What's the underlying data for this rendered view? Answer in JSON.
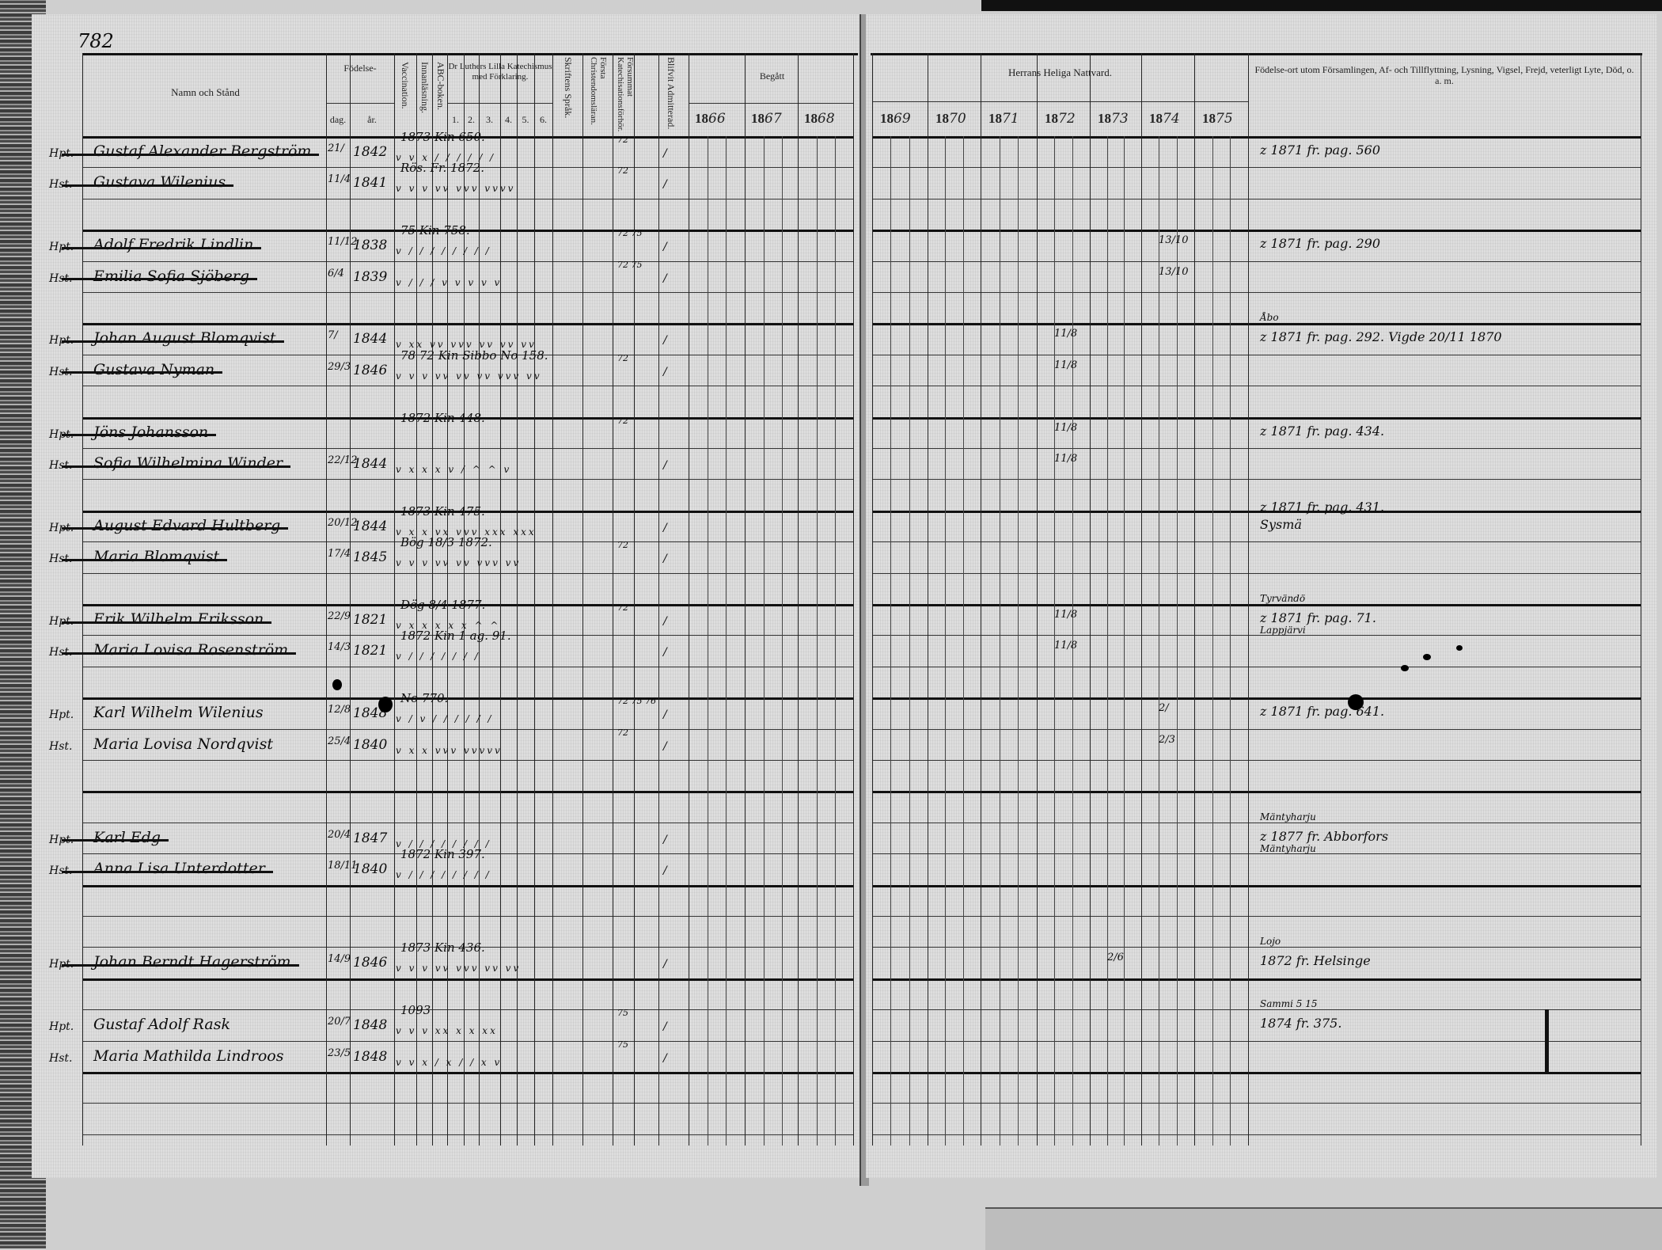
{
  "page_number": "782",
  "left_header": {
    "name_col": "Namn och Stånd",
    "birth": "Födelse-",
    "birth_day": "dag.",
    "birth_year": "år.",
    "vaccination": "Vaccination.",
    "reading": "Innanläsning.",
    "abc": "ABC-boken.",
    "catechism": "Dr Luthers Lilla Katechismus med Förklaring.",
    "catechism_parts": [
      "1.",
      "2.",
      "3.",
      "4.",
      "5.",
      "6."
    ],
    "scripture": "Skriftens Språk.",
    "first_doctrine": "Första Christendomsläran.",
    "missed_catechisation": "Försummat Katechisationsförhör.",
    "admitted": "Blifvit Admitterad.",
    "begatt": "Begått",
    "years": [
      {
        "prefix": "18",
        "hand": "66"
      },
      {
        "prefix": "18",
        "hand": "67"
      },
      {
        "prefix": "18",
        "hand": "68"
      }
    ]
  },
  "right_header": {
    "communion": "Herrans Heliga Nattvard.",
    "years": [
      {
        "prefix": "18",
        "hand": "69"
      },
      {
        "prefix": "18",
        "hand": "70"
      },
      {
        "prefix": "18",
        "hand": "71"
      },
      {
        "prefix": "18",
        "hand": "72"
      },
      {
        "prefix": "18",
        "hand": "73"
      },
      {
        "prefix": "18",
        "hand": "74"
      },
      {
        "prefix": "18",
        "hand": "75"
      }
    ],
    "notes_col": "Födelse-ort utom Församlingen, Af- och Tillflyttning, Lysning, Vigsel, Frejd, veterligt Lyte, Död, o. a. m."
  },
  "entries": [
    {
      "prefix": "Hpt.",
      "name": "Gustaf Alexander Bergström",
      "day": "21/",
      "year": "1842",
      "struck": true,
      "catechism": "1873 Kin 650.",
      "marks": "v v x / / / / / /",
      "admitted": "/",
      "missed": "72",
      "communion": null,
      "notes": [
        "z 1871 fr. pag. 560"
      ]
    },
    {
      "prefix": "Hst.",
      "name": "Gustava Wilenius",
      "day": "11/4",
      "year": "1841",
      "struck": true,
      "catechism": "Rös. Fr. 1872.",
      "marks": "v v v vv vvv vvvv",
      "admitted": "/",
      "missed": "72",
      "communion": null,
      "notes": []
    },
    {
      "prefix": "Hpt.",
      "name": "Adolf Fredrik Lindlin",
      "day": "11/12",
      "year": "1838",
      "struck": true,
      "catechism": "75 Kin 758.",
      "marks": "v / / / / / / / /",
      "admitted": "/",
      "missed": "72 75",
      "communion": {
        "col": 5,
        "value": "13/10"
      },
      "notes": [
        "z 1871 fr. pag. 290"
      ]
    },
    {
      "prefix": "Hst.",
      "name": "Emilia Sofia Sjöberg",
      "day": "6/4",
      "year": "1839",
      "struck": true,
      "catechism": "",
      "marks": "v / / / v v v v v",
      "admitted": "/",
      "missed": "72 75",
      "communion": {
        "col": 5,
        "value": "13/10"
      },
      "notes": []
    },
    {
      "prefix": "Hpt.",
      "name": "Johan August Blomqvist",
      "day": "7/",
      "year": "1844",
      "struck": true,
      "catechism": "",
      "marks": "v xx vv vvv vv vv vv",
      "admitted": "/",
      "missed": "",
      "communion": {
        "col": 3,
        "value": "11/8"
      },
      "notes": [
        "Åbo",
        "z 1871 fr. pag. 292. Vigde 20/11 1870"
      ]
    },
    {
      "prefix": "Hst.",
      "name": "Gustava Nyman",
      "day": "29/3",
      "year": "1846",
      "struck": true,
      "catechism": "78 72 Kin Sibbo No 158.",
      "marks": "v v v vv vv vv vvv vv",
      "admitted": "/",
      "missed": "72",
      "communion": {
        "col": 3,
        "value": "11/8"
      },
      "notes": []
    },
    {
      "prefix": "Hpt.",
      "name": "Jöns Johansson",
      "day": "",
      "year": "",
      "struck": true,
      "catechism": "1872 Kin 448.",
      "marks": "",
      "admitted": "",
      "missed": "72",
      "communion": {
        "col": 3,
        "value": "11/8"
      },
      "notes": [
        "z 1871 fr. pag. 434."
      ]
    },
    {
      "prefix": "Hst.",
      "name": "Sofia Wilhelmina Winder",
      "day": "22/12",
      "year": "1844",
      "struck": true,
      "catechism": "",
      "marks": "v x x x v / ^ ^ v",
      "admitted": "/",
      "missed": "",
      "communion": {
        "col": 3,
        "value": "11/8"
      },
      "notes": []
    },
    {
      "prefix": "Hpt.",
      "name": "August Edvard Hultberg",
      "day": "20/12",
      "year": "1844",
      "struck": true,
      "catechism": "1873 Kin 475.",
      "marks": "v x x vx vvv xxx xxx",
      "admitted": "/",
      "missed": "",
      "communion": null,
      "notes": [
        "z 1871 fr. pag. 431.",
        "Sysmä"
      ]
    },
    {
      "prefix": "Hst.",
      "name": "Maria Blomqvist",
      "day": "17/4",
      "year": "1845",
      "struck": true,
      "catechism": "Bög 18/3 1872.",
      "marks": "v v v vv vv vvv vv",
      "admitted": "/",
      "missed": "72",
      "communion": null,
      "notes": []
    },
    {
      "prefix": "Hpt.",
      "name": "Erik Wilhelm Eriksson",
      "day": "22/9",
      "year": "1821",
      "struck": true,
      "catechism": "Dög 8/4 1877.",
      "marks": "v x x x x x ^ ^",
      "admitted": "/",
      "missed": "72",
      "communion": {
        "col": 3,
        "value": "11/8"
      },
      "notes": [
        "Tyrvändö",
        "z 1871 fr. pag. 71.",
        "Lappjärvi"
      ]
    },
    {
      "prefix": "Hst.",
      "name": "Maria Lovisa Rosenström",
      "day": "14/3",
      "year": "1821",
      "struck": true,
      "catechism": "1872 Kin 1 ag. 91.",
      "marks": "v / / / / / / /",
      "admitted": "/",
      "missed": "",
      "communion": {
        "col": 3,
        "value": "11/8"
      },
      "notes": []
    },
    {
      "prefix": "Hpt.",
      "name": "Karl Wilhelm Wilenius",
      "day": "12/8",
      "year": "1848",
      "struck": false,
      "catechism": "No 770.",
      "marks": "v / v / / / / / /",
      "admitted": "/",
      "missed": "72 75 76",
      "communion": {
        "col": 5,
        "value": "2/"
      },
      "notes": [
        "z 1871 fr. pag. 641."
      ]
    },
    {
      "prefix": "Hst.",
      "name": "Maria Lovisa Nordqvist",
      "day": "25/4",
      "year": "1840",
      "struck": false,
      "catechism": "",
      "marks": "v x x vvv vvvvv",
      "admitted": "/",
      "missed": "72",
      "communion": {
        "col": 5,
        "value": "2/3"
      },
      "notes": []
    },
    {
      "prefix": "Hpt.",
      "name": "Karl Edg",
      "day": "20/4",
      "year": "1847",
      "struck": true,
      "catechism": "",
      "marks": "v / / / / / / / /",
      "admitted": "/",
      "missed": "",
      "communion": null,
      "notes": [
        "Mäntyharju",
        "z 1877 fr. Abborfors",
        "Mäntyharju"
      ]
    },
    {
      "prefix": "Hst.",
      "name": "Anna Lisa Unterdotter",
      "day": "18/11",
      "year": "1840",
      "struck": true,
      "catechism": "1872 Kin 397.",
      "marks": "v / / / / / / / /",
      "admitted": "/",
      "missed": "",
      "communion": null,
      "notes": []
    },
    {
      "prefix": "Hpt.",
      "name": "Johan Berndt Hagerström",
      "day": "14/9",
      "year": "1846",
      "struck": true,
      "catechism": "1873 Kin 436.",
      "marks": "v v v vv vvv vv vv",
      "admitted": "/",
      "missed": "",
      "communion": {
        "col": 4,
        "value": "2/6"
      },
      "notes": [
        "Lojo",
        "1872 fr. Helsinge"
      ]
    },
    {
      "prefix": "Hpt.",
      "name": "Gustaf Adolf Rask",
      "day": "20/7",
      "year": "1848",
      "struck": false,
      "catechism": "1093",
      "marks": "v v v xx x x xx",
      "admitted": "/",
      "missed": "75",
      "communion": null,
      "notes": [
        "Sammi 5 15",
        "1874 fr. 375."
      ]
    },
    {
      "prefix": "Hst.",
      "name": "Maria Mathilda Lindroos",
      "day": "23/5",
      "year": "1848",
      "struck": false,
      "catechism": "",
      "marks": "v v x / x / / x v",
      "admitted": "/",
      "missed": "75",
      "communion": null,
      "notes": []
    }
  ],
  "colors": {
    "paper": "#dedede",
    "ink": "#111111"
  }
}
